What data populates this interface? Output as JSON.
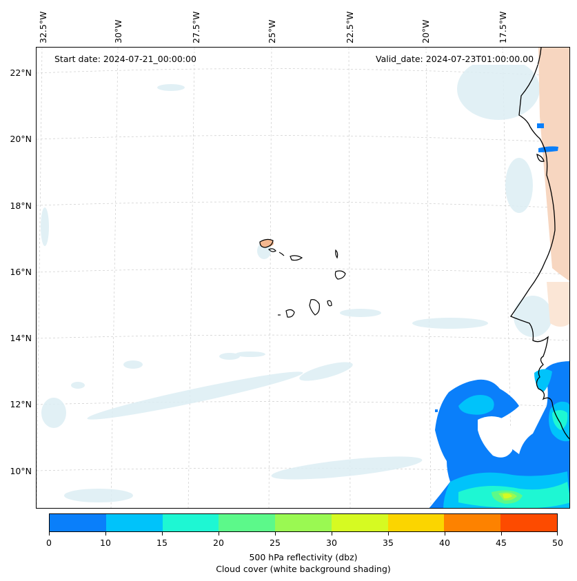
{
  "map": {
    "start_date": "Start date: 2024-07-21_00:00:00",
    "valid_date": "Valid_date: 2024-07-23T01:00:00.00",
    "longitude_labels": [
      "32.5°W",
      "30°W",
      "27.5°W",
      "25°W",
      "22.5°W",
      "20°W",
      "17.5°W"
    ],
    "latitude_labels": [
      "22°N",
      "20°N",
      "18°N",
      "16°N",
      "14°N",
      "12°N",
      "10°N"
    ],
    "features": [
      "cape-verde-islands",
      "west-africa-coastline",
      "dust-shading",
      "cloud-cover",
      "reflectivity-cells"
    ]
  },
  "colorbar": {
    "label": "500 hPa reflectivity (dbz)",
    "sublabel": "Cloud cover (white background shading)",
    "ticks": [
      "0",
      "10",
      "15",
      "20",
      "25",
      "30",
      "35",
      "40",
      "45",
      "50"
    ],
    "colors": [
      "#0a7ffa",
      "#00c3fa",
      "#1ef7d3",
      "#5cf98a",
      "#9af952",
      "#d6fa22",
      "#fbd500",
      "#fd8200",
      "#fd4b00"
    ]
  }
}
